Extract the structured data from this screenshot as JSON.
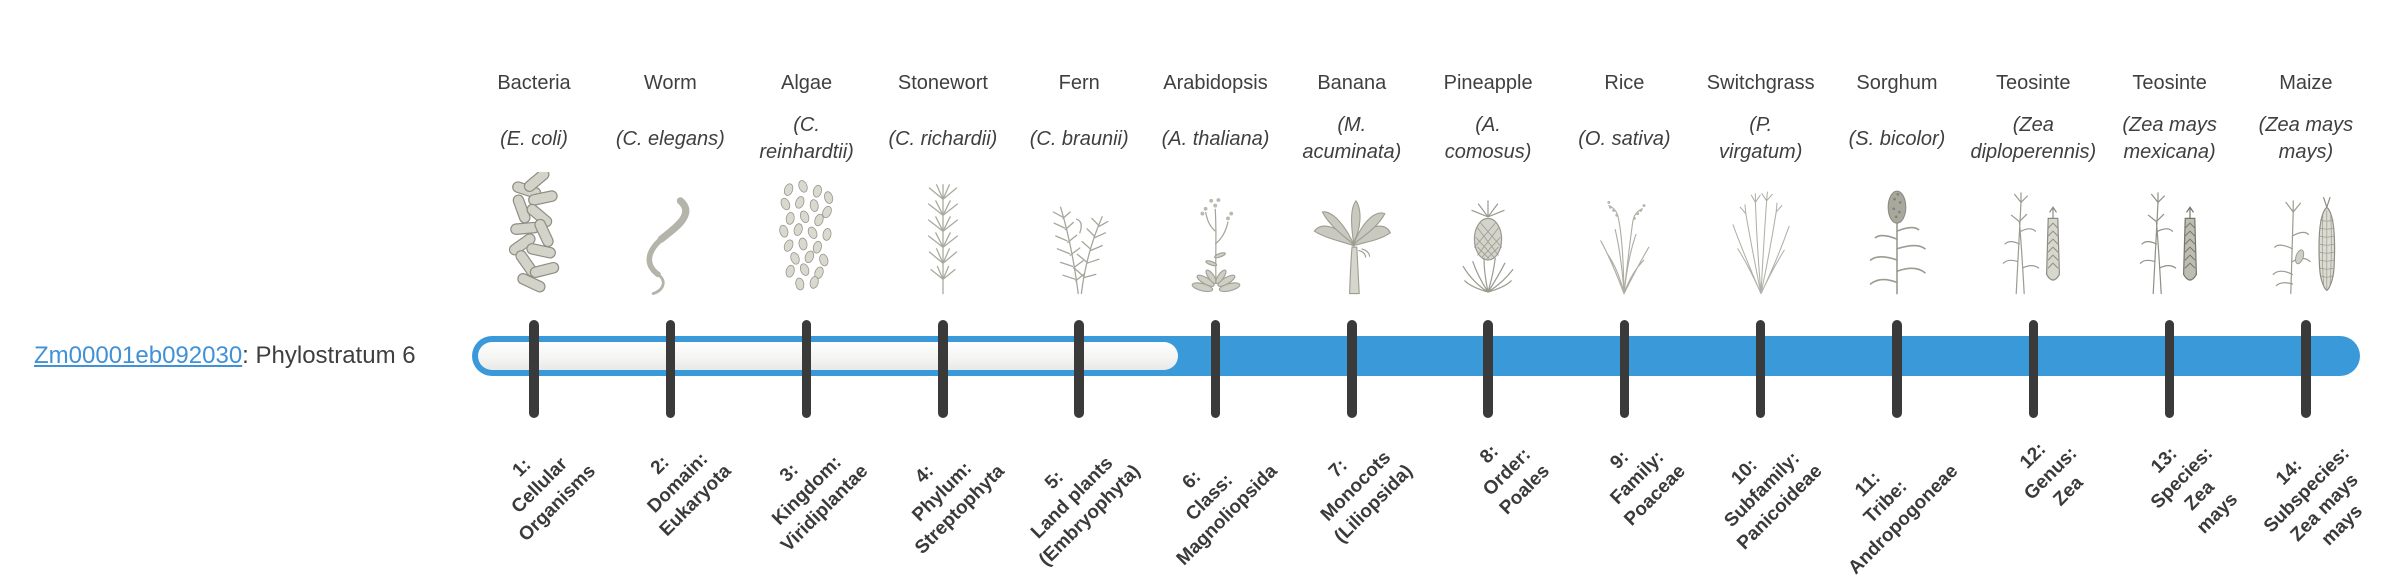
{
  "figure": {
    "type": "phylostratigraphy-timeline"
  },
  "gene": {
    "id": "Zm00001eb092030",
    "caption_suffix": ": Phylostratum 6",
    "phylostratum": 6
  },
  "timeline": {
    "total_strata": 14,
    "filled_from_stratum": 6,
    "bar_fill_color": "#3a99d9",
    "bar_track_color": "#f5f5f4",
    "tick_color": "#3a3a3a",
    "link_color": "#4191d6",
    "text_color": "#3f3f3f"
  },
  "strata": [
    {
      "index": 1,
      "organism": "Bacteria",
      "species": "(E. coli)",
      "icon": "bacteria-icon",
      "rank_label": "1:\nCellular\nOrganisms"
    },
    {
      "index": 2,
      "organism": "Worm",
      "species": "(C. elegans)",
      "icon": "worm-icon",
      "rank_label": "2:\nDomain:\nEukaryota"
    },
    {
      "index": 3,
      "organism": "Algae",
      "species": "(C.\nreinhardtii)",
      "icon": "algae-icon",
      "rank_label": "3:\nKingdom:\nViridiplantae"
    },
    {
      "index": 4,
      "organism": "Stonewort",
      "species": "(C. richardii)",
      "icon": "stonewort-icon",
      "rank_label": "4:\nPhylum:\nStreptophyta"
    },
    {
      "index": 5,
      "organism": "Fern",
      "species": "(C. braunii)",
      "icon": "fern-icon",
      "rank_label": "5:\nLand plants\n(Embryophyta)"
    },
    {
      "index": 6,
      "organism": "Arabidopsis",
      "species": "(A. thaliana)",
      "icon": "arabidopsis-icon",
      "rank_label": "6:\nClass:\nMagnoliopsida"
    },
    {
      "index": 7,
      "organism": "Banana",
      "species": "(M.\nacuminata)",
      "icon": "banana-icon",
      "rank_label": "7:\nMonocots\n(Liliopsida)"
    },
    {
      "index": 8,
      "organism": "Pineapple",
      "species": "(A.\ncomosus)",
      "icon": "pineapple-icon",
      "rank_label": "8:\nOrder:\nPoales"
    },
    {
      "index": 9,
      "organism": "Rice",
      "species": "(O. sativa)",
      "icon": "rice-icon",
      "rank_label": "9:\nFamily:\nPoaceae"
    },
    {
      "index": 10,
      "organism": "Switchgrass",
      "species": "(P.\nvirgatum)",
      "icon": "switchgrass-icon",
      "rank_label": "10:\nSubfamily:\nPanicoideae"
    },
    {
      "index": 11,
      "organism": "Sorghum",
      "species": "(S. bicolor)",
      "icon": "sorghum-icon",
      "rank_label": "11:\nTribe:\nAndropogoneae"
    },
    {
      "index": 12,
      "organism": "Teosinte",
      "species": "(Zea\ndiploperennis)",
      "icon": "teosinte-icon",
      "rank_label": "12:\nGenus:\nZea"
    },
    {
      "index": 13,
      "organism": "Teosinte",
      "species": "(Zea mays\nmexicana)",
      "icon": "teosinte-dark-icon",
      "rank_label": "13:\nSpecies:\nZea\nmays"
    },
    {
      "index": 14,
      "organism": "Maize",
      "species": "(Zea mays\nmays)",
      "icon": "maize-icon",
      "rank_label": "14:\nSubspecies:\nZea mays\nmays"
    }
  ]
}
